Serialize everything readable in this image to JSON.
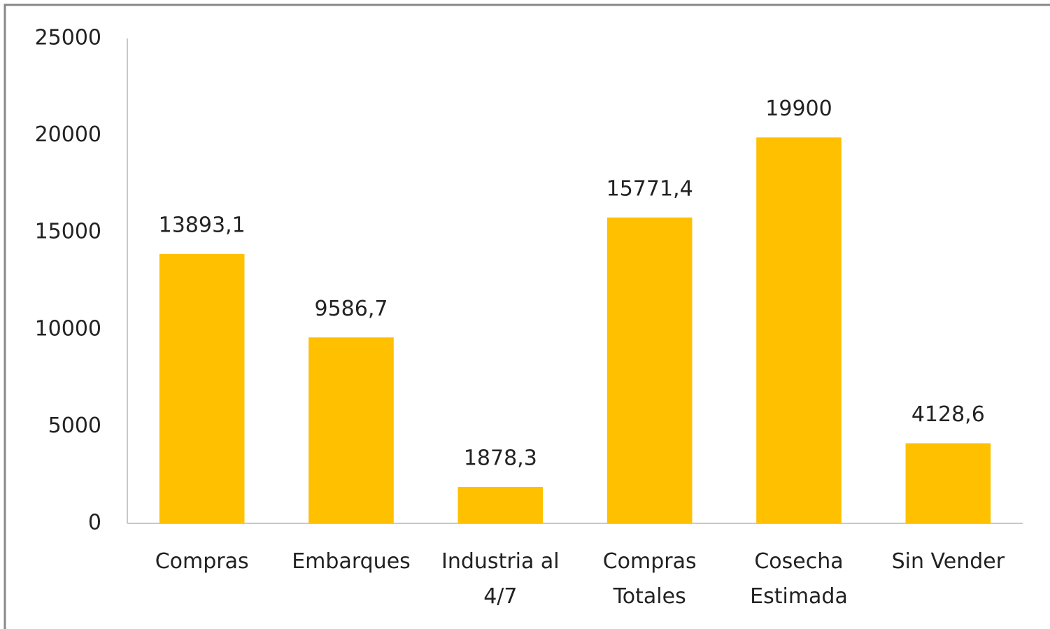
{
  "chart_data": {
    "type": "bar",
    "categories": [
      "Compras",
      "Embarques",
      "Industria al 4/7",
      "Compras Totales",
      "Cosecha Estimada",
      "Sin Vender"
    ],
    "values": [
      13893.1,
      9586.7,
      1878.3,
      15771.4,
      19900,
      4128.6
    ],
    "value_labels": [
      "13893,1",
      "9586,7",
      "1878,3",
      "15771,4",
      "19900",
      "4128,6"
    ],
    "color": "#ffc000",
    "ylim": [
      0,
      25000
    ],
    "yticks": [
      0,
      5000,
      10000,
      15000,
      20000,
      25000
    ],
    "grid": false
  }
}
